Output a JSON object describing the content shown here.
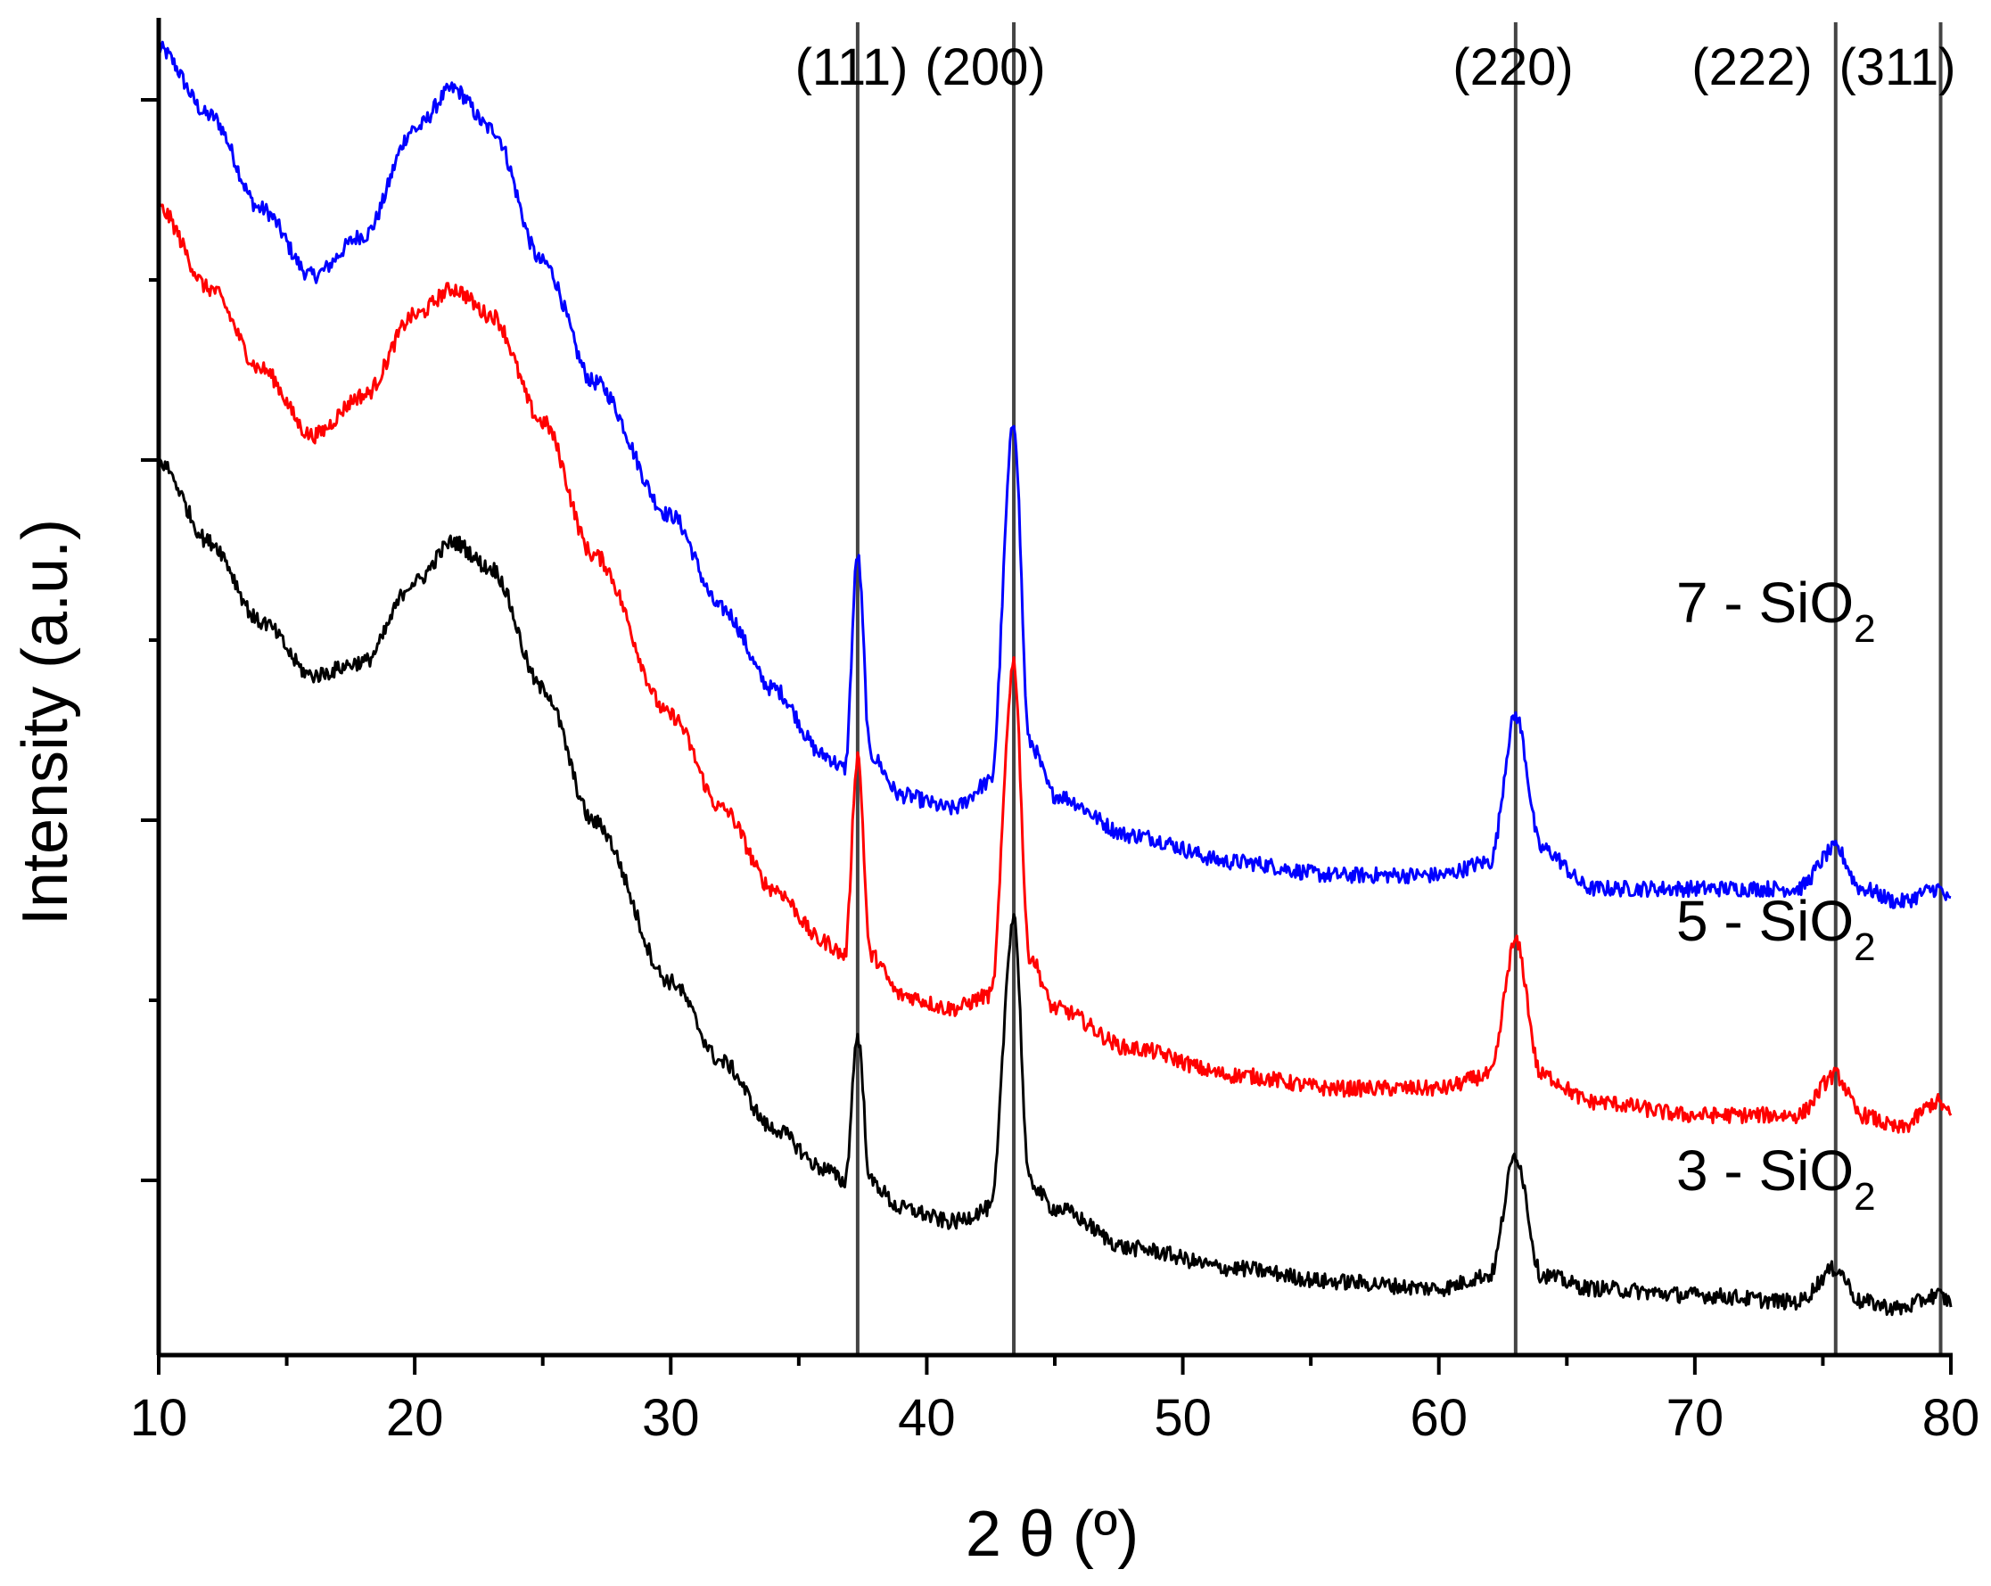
{
  "chart_data": {
    "type": "line",
    "title": "",
    "xlabel": "2 θ (º)",
    "ylabel": "Intensity (a.u.)",
    "xlim": [
      10,
      80
    ],
    "x_ticks": [
      "10",
      "20",
      "30",
      "40",
      "50",
      "60",
      "70",
      "80"
    ],
    "y_tick_labels_shown": false,
    "legend": "none (series labelled directly on the right)",
    "reference_lines": [
      {
        "label": "(111)",
        "x": 37.3
      },
      {
        "label": "(200)",
        "x": 43.4
      },
      {
        "label": "(220)",
        "x": 63.0
      },
      {
        "label": "(222)",
        "x": 75.5
      },
      {
        "label": "(311)",
        "x": 79.6
      }
    ],
    "series": [
      {
        "name": "7 - SiO2",
        "label_main": "7 - SiO",
        "label_sub": "2",
        "color": "#0000ff",
        "points": [
          [
            10,
            0.98
          ],
          [
            12,
            0.93
          ],
          [
            14,
            0.86
          ],
          [
            16,
            0.81
          ],
          [
            18,
            0.84
          ],
          [
            20,
            0.92
          ],
          [
            21.5,
            0.95
          ],
          [
            23,
            0.92
          ],
          [
            25,
            0.82
          ],
          [
            27,
            0.73
          ],
          [
            30,
            0.63
          ],
          [
            32,
            0.56
          ],
          [
            34,
            0.5
          ],
          [
            36,
            0.45
          ],
          [
            36.8,
            0.44
          ],
          [
            37.3,
            0.6
          ],
          [
            37.8,
            0.45
          ],
          [
            39,
            0.42
          ],
          [
            41,
            0.41
          ],
          [
            42.5,
            0.43
          ],
          [
            43.4,
            0.7
          ],
          [
            44,
            0.46
          ],
          [
            45,
            0.42
          ],
          [
            48,
            0.39
          ],
          [
            52,
            0.37
          ],
          [
            56,
            0.36
          ],
          [
            60,
            0.36
          ],
          [
            62,
            0.37
          ],
          [
            63,
            0.48
          ],
          [
            64,
            0.38
          ],
          [
            66,
            0.35
          ],
          [
            70,
            0.35
          ],
          [
            74,
            0.35
          ],
          [
            75.5,
            0.38
          ],
          [
            76.5,
            0.35
          ],
          [
            78,
            0.34
          ],
          [
            79.5,
            0.35
          ],
          [
            80,
            0.34
          ]
        ]
      },
      {
        "name": "5 - SiO2",
        "label_main": "5 - SiO",
        "label_sub": "2",
        "color": "#ff0000",
        "points": [
          [
            10,
            0.86
          ],
          [
            12,
            0.8
          ],
          [
            14,
            0.74
          ],
          [
            16,
            0.69
          ],
          [
            18,
            0.72
          ],
          [
            20,
            0.78
          ],
          [
            21.5,
            0.8
          ],
          [
            23,
            0.78
          ],
          [
            25,
            0.7
          ],
          [
            27,
            0.6
          ],
          [
            30,
            0.48
          ],
          [
            32,
            0.41
          ],
          [
            34,
            0.35
          ],
          [
            36,
            0.31
          ],
          [
            36.8,
            0.3
          ],
          [
            37.3,
            0.45
          ],
          [
            37.8,
            0.3
          ],
          [
            39,
            0.27
          ],
          [
            41,
            0.26
          ],
          [
            42.5,
            0.27
          ],
          [
            43.4,
            0.52
          ],
          [
            44,
            0.3
          ],
          [
            45,
            0.26
          ],
          [
            48,
            0.23
          ],
          [
            52,
            0.21
          ],
          [
            56,
            0.2
          ],
          [
            60,
            0.2
          ],
          [
            62,
            0.21
          ],
          [
            63,
            0.31
          ],
          [
            64,
            0.21
          ],
          [
            66,
            0.19
          ],
          [
            70,
            0.18
          ],
          [
            74,
            0.18
          ],
          [
            75.5,
            0.21
          ],
          [
            76.5,
            0.18
          ],
          [
            78,
            0.17
          ],
          [
            79.5,
            0.19
          ],
          [
            80,
            0.18
          ]
        ]
      },
      {
        "name": "3 - SiO2",
        "label_main": "3 - SiO",
        "label_sub": "2",
        "color": "#000000",
        "points": [
          [
            10,
            0.67
          ],
          [
            12,
            0.61
          ],
          [
            14,
            0.55
          ],
          [
            16,
            0.51
          ],
          [
            18,
            0.52
          ],
          [
            20,
            0.58
          ],
          [
            21.5,
            0.61
          ],
          [
            23,
            0.59
          ],
          [
            25,
            0.5
          ],
          [
            27,
            0.4
          ],
          [
            30,
            0.28
          ],
          [
            32,
            0.22
          ],
          [
            34,
            0.17
          ],
          [
            36,
            0.14
          ],
          [
            36.8,
            0.13
          ],
          [
            37.3,
            0.24
          ],
          [
            37.8,
            0.13
          ],
          [
            39,
            0.11
          ],
          [
            41,
            0.1
          ],
          [
            42.5,
            0.11
          ],
          [
            43.4,
            0.33
          ],
          [
            44,
            0.13
          ],
          [
            45,
            0.11
          ],
          [
            48,
            0.08
          ],
          [
            52,
            0.065
          ],
          [
            56,
            0.055
          ],
          [
            60,
            0.05
          ],
          [
            62,
            0.06
          ],
          [
            63,
            0.15
          ],
          [
            64,
            0.06
          ],
          [
            66,
            0.05
          ],
          [
            70,
            0.045
          ],
          [
            74,
            0.04
          ],
          [
            75.5,
            0.065
          ],
          [
            76.5,
            0.04
          ],
          [
            78,
            0.035
          ],
          [
            79.5,
            0.045
          ],
          [
            80,
            0.04
          ]
        ]
      }
    ]
  }
}
